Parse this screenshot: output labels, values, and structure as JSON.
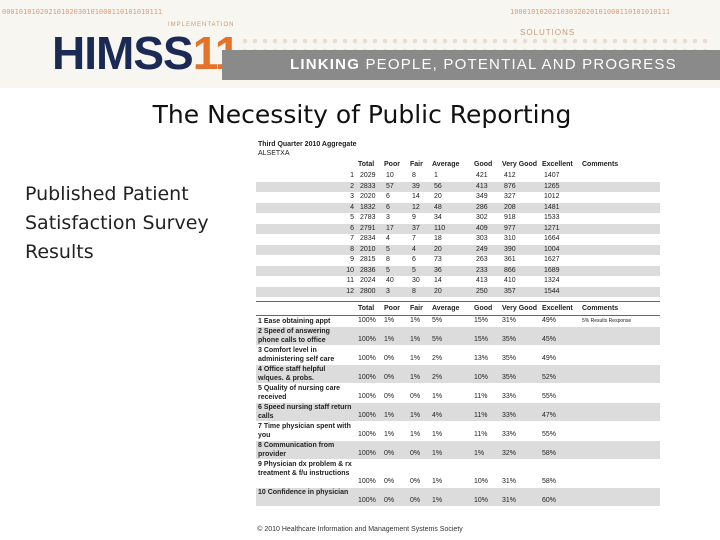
{
  "banner": {
    "binary_left": "00010101020210102030101000110101010111",
    "binary_right": "10001010202103032020101000110101010111",
    "implementation": "IMPLEMENTATION",
    "solutions": "SOLUTIONS",
    "logo_text": "HIMSS",
    "logo_number": "11",
    "tagline_bold": "LINKING",
    "tagline_rest": " PEOPLE, POTENTIAL AND PROGRESS"
  },
  "title": "The Necessity of Public Reporting",
  "subtitle": "Published Patient Satisfaction Survey Results",
  "table": {
    "heading": "Third Quarter 2010 Aggregate",
    "subheading": "ALSETXA",
    "columns": [
      "Total",
      "Poor",
      "Fair",
      "Average",
      "Good",
      "Very Good",
      "Excellent",
      "Comments"
    ],
    "rows": [
      [
        "1",
        "2029",
        "10",
        "8",
        "1",
        "421",
        "412",
        "1407",
        ""
      ],
      [
        "2",
        "2833",
        "57",
        "39",
        "56",
        "413",
        "876",
        "1265",
        ""
      ],
      [
        "3",
        "2020",
        "6",
        "14",
        "20",
        "349",
        "327",
        "1012",
        ""
      ],
      [
        "4",
        "1832",
        "6",
        "12",
        "48",
        "286",
        "208",
        "1481",
        ""
      ],
      [
        "5",
        "2783",
        "3",
        "9",
        "34",
        "302",
        "918",
        "1533",
        ""
      ],
      [
        "6",
        "2791",
        "17",
        "37",
        "110",
        "409",
        "977",
        "1271",
        ""
      ],
      [
        "7",
        "2834",
        "4",
        "7",
        "18",
        "303",
        "310",
        "1664",
        ""
      ],
      [
        "8",
        "2010",
        "5",
        "4",
        "20",
        "249",
        "390",
        "1004",
        ""
      ],
      [
        "9",
        "2815",
        "8",
        "6",
        "73",
        "263",
        "361",
        "1627",
        ""
      ],
      [
        "10",
        "2836",
        "5",
        "5",
        "36",
        "233",
        "866",
        "1689",
        ""
      ],
      [
        "11",
        "2024",
        "40",
        "30",
        "14",
        "413",
        "410",
        "1324",
        ""
      ],
      [
        "12",
        "2800",
        "3",
        "8",
        "20",
        "250",
        "357",
        "1544",
        ""
      ]
    ],
    "questions": [
      {
        "label": "1 Ease obtaining appt",
        "vals": [
          "100%",
          "1%",
          "1%",
          "5%",
          "15%",
          "31%",
          "49%",
          "5% Results Response"
        ]
      },
      {
        "label": "2 Speed of answering phone calls to office",
        "vals": [
          "100%",
          "1%",
          "1%",
          "5%",
          "15%",
          "35%",
          "45%",
          ""
        ]
      },
      {
        "label": "3 Comfort level in administering self care",
        "vals": [
          "100%",
          "0%",
          "1%",
          "2%",
          "13%",
          "35%",
          "49%",
          ""
        ]
      },
      {
        "label": "4 Office staff helpful w/ques. & probs.",
        "vals": [
          "100%",
          "0%",
          "1%",
          "2%",
          "10%",
          "35%",
          "52%",
          ""
        ]
      },
      {
        "label": "5 Quality of nursing care received",
        "vals": [
          "100%",
          "0%",
          "0%",
          "1%",
          "11%",
          "33%",
          "55%",
          ""
        ]
      },
      {
        "label": "6 Speed nursing staff return calls",
        "vals": [
          "100%",
          "1%",
          "1%",
          "4%",
          "11%",
          "33%",
          "47%",
          ""
        ]
      },
      {
        "label": "7 Time physician spent with you",
        "vals": [
          "100%",
          "1%",
          "1%",
          "1%",
          "11%",
          "33%",
          "55%",
          ""
        ]
      },
      {
        "label": "8 Communication from provider",
        "vals": [
          "100%",
          "0%",
          "0%",
          "1%",
          "1%",
          "32%",
          "58%",
          ""
        ]
      },
      {
        "label": "9 Physician dx problem & rx treatment & f/u instructions",
        "vals": [
          "100%",
          "0%",
          "0%",
          "1%",
          "10%",
          "31%",
          "58%",
          ""
        ]
      },
      {
        "label": "10 Confidence in physician",
        "vals": [
          "100%",
          "0%",
          "0%",
          "1%",
          "10%",
          "31%",
          "60%",
          ""
        ]
      }
    ]
  },
  "footer": "© 2010 Healthcare Information and Management Systems Society",
  "colors": {
    "brand_navy": "#1a2a55",
    "brand_orange": "#e6712a",
    "stripe_gray": "#8a8a8a"
  }
}
